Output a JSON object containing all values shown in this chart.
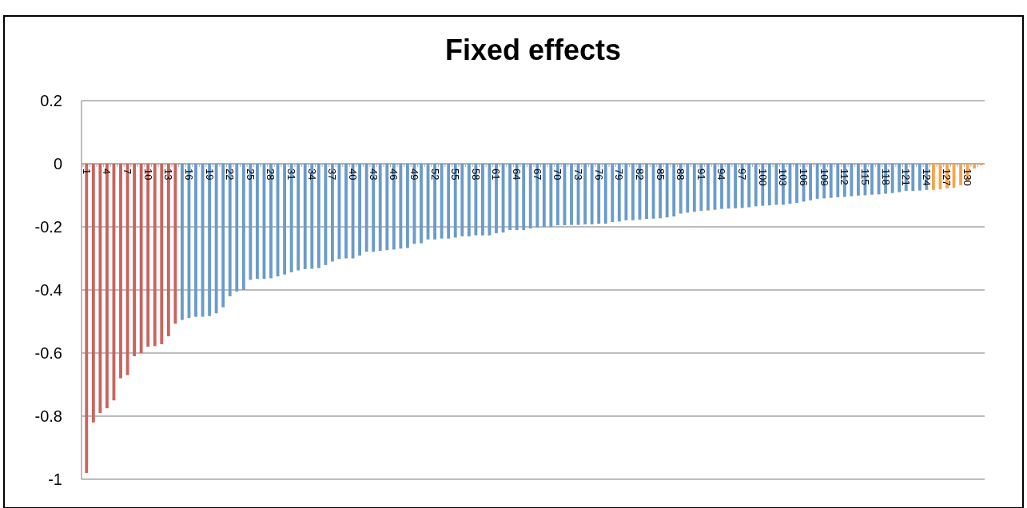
{
  "chart_data": {
    "type": "bar",
    "title": "Fixed effects",
    "categories": [
      "1",
      null,
      null,
      "4",
      null,
      null,
      "7",
      null,
      null,
      "10",
      null,
      null,
      "13",
      null,
      null,
      "16",
      null,
      null,
      "19",
      null,
      null,
      "22",
      null,
      null,
      "25",
      null,
      null,
      "28",
      null,
      null,
      "31",
      null,
      null,
      "34",
      null,
      null,
      "37",
      null,
      null,
      "40",
      null,
      null,
      "43",
      null,
      null,
      "46",
      null,
      null,
      "49",
      null,
      null,
      "52",
      null,
      null,
      "55",
      null,
      null,
      "58",
      null,
      null,
      "61",
      null,
      null,
      "64",
      null,
      null,
      "67",
      null,
      null,
      "70",
      null,
      null,
      "73",
      null,
      null,
      "76",
      null,
      null,
      "79",
      null,
      null,
      "82",
      null,
      null,
      "85",
      null,
      null,
      "88",
      null,
      null,
      "91",
      null,
      null,
      "94",
      null,
      null,
      "97",
      null,
      null,
      "100",
      null,
      null,
      "103",
      null,
      null,
      "106",
      null,
      null,
      "109",
      null,
      null,
      "112",
      null,
      null,
      "115",
      null,
      null,
      "118",
      null,
      null,
      "121",
      null,
      null,
      "124",
      null,
      null,
      "127",
      null,
      null,
      "130",
      null,
      null
    ],
    "values": [
      -0.98,
      -0.82,
      -0.79,
      -0.775,
      -0.75,
      -0.68,
      -0.67,
      -0.61,
      -0.6,
      -0.58,
      -0.578,
      -0.572,
      -0.547,
      -0.507,
      -0.495,
      -0.489,
      -0.485,
      -0.485,
      -0.483,
      -0.474,
      -0.455,
      -0.42,
      -0.405,
      -0.4,
      -0.368,
      -0.365,
      -0.365,
      -0.363,
      -0.357,
      -0.351,
      -0.344,
      -0.338,
      -0.334,
      -0.333,
      -0.331,
      -0.321,
      -0.31,
      -0.302,
      -0.3,
      -0.3,
      -0.291,
      -0.279,
      -0.279,
      -0.276,
      -0.274,
      -0.272,
      -0.269,
      -0.267,
      -0.254,
      -0.252,
      -0.24,
      -0.24,
      -0.237,
      -0.237,
      -0.234,
      -0.23,
      -0.23,
      -0.227,
      -0.227,
      -0.227,
      -0.22,
      -0.218,
      -0.21,
      -0.21,
      -0.21,
      -0.205,
      -0.202,
      -0.2,
      -0.2,
      -0.195,
      -0.195,
      -0.194,
      -0.194,
      -0.192,
      -0.192,
      -0.19,
      -0.19,
      -0.185,
      -0.183,
      -0.179,
      -0.179,
      -0.177,
      -0.175,
      -0.174,
      -0.173,
      -0.17,
      -0.167,
      -0.158,
      -0.155,
      -0.152,
      -0.149,
      -0.148,
      -0.146,
      -0.143,
      -0.142,
      -0.141,
      -0.14,
      -0.138,
      -0.135,
      -0.133,
      -0.132,
      -0.13,
      -0.13,
      -0.127,
      -0.124,
      -0.12,
      -0.116,
      -0.111,
      -0.11,
      -0.108,
      -0.106,
      -0.105,
      -0.103,
      -0.101,
      -0.1,
      -0.098,
      -0.097,
      -0.095,
      -0.093,
      -0.09,
      -0.086,
      -0.086,
      -0.085,
      -0.083,
      -0.083,
      -0.081,
      -0.078,
      -0.076,
      -0.068,
      -0.057,
      -0.015,
      -0.005
    ],
    "colors": [
      "#c9645d",
      "#c9645d",
      "#c9645d",
      "#c9645d",
      "#c9645d",
      "#c9645d",
      "#c9645d",
      "#c9645d",
      "#c9645d",
      "#c9645d",
      "#c9645d",
      "#c9645d",
      "#c9645d",
      "#c9645d",
      "#6a9bcc",
      "#6a9bcc",
      "#6a9bcc",
      "#6a9bcc",
      "#6a9bcc",
      "#6a9bcc",
      "#6a9bcc",
      "#6a9bcc",
      "#6a9bcc",
      "#6a9bcc",
      "#6a9bcc",
      "#6a9bcc",
      "#6a9bcc",
      "#6a9bcc",
      "#6a9bcc",
      "#6a9bcc",
      "#6a9bcc",
      "#6a9bcc",
      "#6a9bcc",
      "#6a9bcc",
      "#6a9bcc",
      "#6a9bcc",
      "#6a9bcc",
      "#6a9bcc",
      "#6a9bcc",
      "#6a9bcc",
      "#6a9bcc",
      "#6a9bcc",
      "#6a9bcc",
      "#6a9bcc",
      "#6a9bcc",
      "#6a9bcc",
      "#6a9bcc",
      "#6a9bcc",
      "#6a9bcc",
      "#6a9bcc",
      "#6a9bcc",
      "#6a9bcc",
      "#6a9bcc",
      "#6a9bcc",
      "#6a9bcc",
      "#6a9bcc",
      "#6a9bcc",
      "#6a9bcc",
      "#6a9bcc",
      "#6a9bcc",
      "#6a9bcc",
      "#6a9bcc",
      "#6a9bcc",
      "#6a9bcc",
      "#6a9bcc",
      "#6a9bcc",
      "#6a9bcc",
      "#6a9bcc",
      "#6a9bcc",
      "#6a9bcc",
      "#6a9bcc",
      "#6a9bcc",
      "#6a9bcc",
      "#6a9bcc",
      "#6a9bcc",
      "#6a9bcc",
      "#6a9bcc",
      "#6a9bcc",
      "#6a9bcc",
      "#6a9bcc",
      "#6a9bcc",
      "#6a9bcc",
      "#6a9bcc",
      "#6a9bcc",
      "#6a9bcc",
      "#6a9bcc",
      "#6a9bcc",
      "#6a9bcc",
      "#6a9bcc",
      "#6a9bcc",
      "#6a9bcc",
      "#6a9bcc",
      "#6a9bcc",
      "#6a9bcc",
      "#6a9bcc",
      "#6a9bcc",
      "#6a9bcc",
      "#6a9bcc",
      "#6a9bcc",
      "#6a9bcc",
      "#6a9bcc",
      "#6a9bcc",
      "#6a9bcc",
      "#6a9bcc",
      "#6a9bcc",
      "#6a9bcc",
      "#6a9bcc",
      "#6a9bcc",
      "#6a9bcc",
      "#6a9bcc",
      "#6a9bcc",
      "#6a9bcc",
      "#6a9bcc",
      "#6a9bcc",
      "#6a9bcc",
      "#6a9bcc",
      "#6a9bcc",
      "#6a9bcc",
      "#6a9bcc",
      "#6a9bcc",
      "#6a9bcc",
      "#6a9bcc",
      "#6a9bcc",
      "#6a9bcc",
      "#f6a54d",
      "#f6a54d",
      "#f6a54d",
      "#f6a54d",
      "#f6a54d",
      "#f6a54d",
      "#f6a54d",
      "#f6a54d"
    ],
    "ylim": [
      -1,
      0.2
    ],
    "yticks": [
      0.2,
      0,
      -0.2,
      -0.4,
      -0.6,
      -0.8,
      -1
    ],
    "grid": "y"
  }
}
